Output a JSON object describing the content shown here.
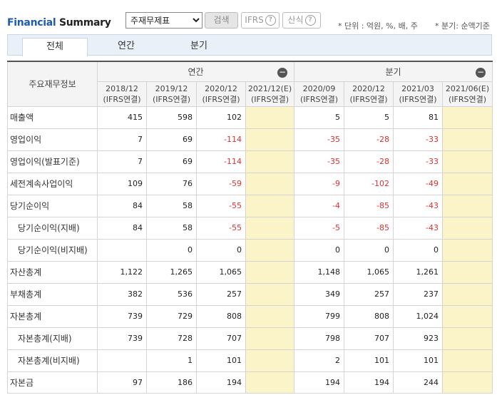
{
  "header": {
    "title_part1": "Financial",
    "title_part2": "Summary",
    "select_value": "주재무제표",
    "search_label": "검색",
    "ifrs_label": "IFRS",
    "formula_label": "산식",
    "help_glyph": "?",
    "unit_note": "* 단위 : 억원, %, 배, 주",
    "quarter_note": "* 분기: 순액기준"
  },
  "tabs": [
    "전체",
    "연간",
    "분기"
  ],
  "table": {
    "corner_label": "주요재무정보",
    "group_annual": "연간",
    "group_quarter": "분기",
    "collapse_glyph": "−",
    "periods": [
      {
        "date": "2018/12",
        "basis": "(IFRS연결)"
      },
      {
        "date": "2019/12",
        "basis": "(IFRS연결)"
      },
      {
        "date": "2020/12",
        "basis": "(IFRS연결)"
      },
      {
        "date": "2021/12(E)",
        "basis": "(IFRS연결)"
      },
      {
        "date": "2020/09",
        "basis": "(IFRS연결)"
      },
      {
        "date": "2020/12",
        "basis": "(IFRS연결)"
      },
      {
        "date": "2021/03",
        "basis": "(IFRS연결)"
      },
      {
        "date": "2021/06(E)",
        "basis": "(IFRS연결)"
      }
    ],
    "rows": [
      {
        "label": "매출액",
        "sub": false,
        "values": [
          "415",
          "598",
          "102",
          "",
          "5",
          "5",
          "81",
          ""
        ]
      },
      {
        "label": "영업이익",
        "sub": false,
        "values": [
          "7",
          "69",
          "-114",
          "",
          "-35",
          "-28",
          "-33",
          ""
        ]
      },
      {
        "label": "영업이익(발표기준)",
        "sub": false,
        "values": [
          "7",
          "69",
          "-114",
          "",
          "-35",
          "-28",
          "-33",
          ""
        ]
      },
      {
        "label": "세전계속사업이익",
        "sub": false,
        "values": [
          "109",
          "76",
          "-59",
          "",
          "-9",
          "-102",
          "-49",
          ""
        ]
      },
      {
        "label": "당기순이익",
        "sub": false,
        "values": [
          "84",
          "58",
          "-55",
          "",
          "-4",
          "-85",
          "-43",
          ""
        ]
      },
      {
        "label": "당기순이익(지배)",
        "sub": true,
        "values": [
          "84",
          "58",
          "-55",
          "",
          "-5",
          "-85",
          "-43",
          ""
        ]
      },
      {
        "label": "당기순이익(비지배)",
        "sub": true,
        "values": [
          "",
          "0",
          "0",
          "",
          "0",
          "0",
          "0",
          ""
        ]
      },
      {
        "label": "자산총계",
        "sub": false,
        "values": [
          "1,122",
          "1,265",
          "1,065",
          "",
          "1,148",
          "1,065",
          "1,261",
          ""
        ]
      },
      {
        "label": "부채총계",
        "sub": false,
        "values": [
          "382",
          "536",
          "257",
          "",
          "349",
          "257",
          "237",
          ""
        ]
      },
      {
        "label": "자본총계",
        "sub": false,
        "values": [
          "739",
          "729",
          "808",
          "",
          "799",
          "808",
          "1,024",
          ""
        ]
      },
      {
        "label": "자본총계(지배)",
        "sub": true,
        "values": [
          "739",
          "728",
          "707",
          "",
          "798",
          "707",
          "923",
          ""
        ]
      },
      {
        "label": "자본총계(비지배)",
        "sub": true,
        "values": [
          "",
          "1",
          "101",
          "",
          "2",
          "101",
          "101",
          ""
        ]
      },
      {
        "label": "자본금",
        "sub": false,
        "values": [
          "97",
          "186",
          "194",
          "",
          "194",
          "194",
          "244",
          ""
        ]
      }
    ]
  }
}
